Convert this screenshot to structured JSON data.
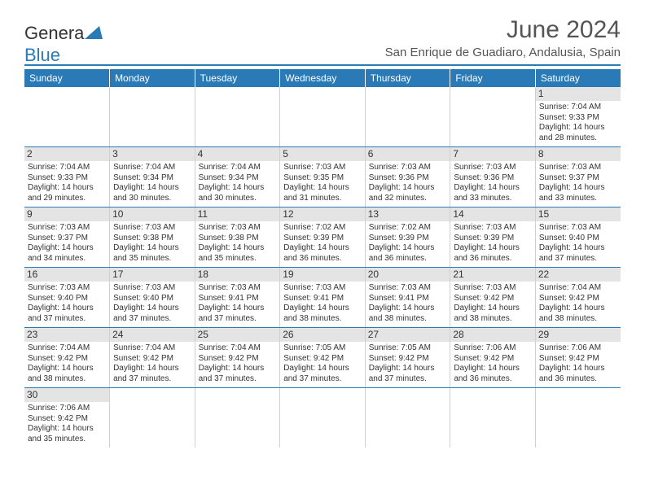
{
  "logo": {
    "part1": "Genera",
    "part2": "Blue"
  },
  "title": "June 2024",
  "location": "San Enrique de Guadiaro, Andalusia, Spain",
  "colors": {
    "header_bg": "#2a7ab8",
    "daynum_bg": "#e4e4e4",
    "border": "#2a7ab8",
    "cell_border": "#d0d0d0",
    "text": "#333333",
    "logo_tri": "#2a7ab8"
  },
  "weekdays": [
    "Sunday",
    "Monday",
    "Tuesday",
    "Wednesday",
    "Thursday",
    "Friday",
    "Saturday"
  ],
  "weeks": [
    [
      null,
      null,
      null,
      null,
      null,
      null,
      {
        "n": "1",
        "sr": "Sunrise: 7:04 AM",
        "ss": "Sunset: 9:33 PM",
        "d1": "Daylight: 14 hours",
        "d2": "and 28 minutes."
      }
    ],
    [
      {
        "n": "2",
        "sr": "Sunrise: 7:04 AM",
        "ss": "Sunset: 9:33 PM",
        "d1": "Daylight: 14 hours",
        "d2": "and 29 minutes."
      },
      {
        "n": "3",
        "sr": "Sunrise: 7:04 AM",
        "ss": "Sunset: 9:34 PM",
        "d1": "Daylight: 14 hours",
        "d2": "and 30 minutes."
      },
      {
        "n": "4",
        "sr": "Sunrise: 7:04 AM",
        "ss": "Sunset: 9:34 PM",
        "d1": "Daylight: 14 hours",
        "d2": "and 30 minutes."
      },
      {
        "n": "5",
        "sr": "Sunrise: 7:03 AM",
        "ss": "Sunset: 9:35 PM",
        "d1": "Daylight: 14 hours",
        "d2": "and 31 minutes."
      },
      {
        "n": "6",
        "sr": "Sunrise: 7:03 AM",
        "ss": "Sunset: 9:36 PM",
        "d1": "Daylight: 14 hours",
        "d2": "and 32 minutes."
      },
      {
        "n": "7",
        "sr": "Sunrise: 7:03 AM",
        "ss": "Sunset: 9:36 PM",
        "d1": "Daylight: 14 hours",
        "d2": "and 33 minutes."
      },
      {
        "n": "8",
        "sr": "Sunrise: 7:03 AM",
        "ss": "Sunset: 9:37 PM",
        "d1": "Daylight: 14 hours",
        "d2": "and 33 minutes."
      }
    ],
    [
      {
        "n": "9",
        "sr": "Sunrise: 7:03 AM",
        "ss": "Sunset: 9:37 PM",
        "d1": "Daylight: 14 hours",
        "d2": "and 34 minutes."
      },
      {
        "n": "10",
        "sr": "Sunrise: 7:03 AM",
        "ss": "Sunset: 9:38 PM",
        "d1": "Daylight: 14 hours",
        "d2": "and 35 minutes."
      },
      {
        "n": "11",
        "sr": "Sunrise: 7:03 AM",
        "ss": "Sunset: 9:38 PM",
        "d1": "Daylight: 14 hours",
        "d2": "and 35 minutes."
      },
      {
        "n": "12",
        "sr": "Sunrise: 7:02 AM",
        "ss": "Sunset: 9:39 PM",
        "d1": "Daylight: 14 hours",
        "d2": "and 36 minutes."
      },
      {
        "n": "13",
        "sr": "Sunrise: 7:02 AM",
        "ss": "Sunset: 9:39 PM",
        "d1": "Daylight: 14 hours",
        "d2": "and 36 minutes."
      },
      {
        "n": "14",
        "sr": "Sunrise: 7:03 AM",
        "ss": "Sunset: 9:39 PM",
        "d1": "Daylight: 14 hours",
        "d2": "and 36 minutes."
      },
      {
        "n": "15",
        "sr": "Sunrise: 7:03 AM",
        "ss": "Sunset: 9:40 PM",
        "d1": "Daylight: 14 hours",
        "d2": "and 37 minutes."
      }
    ],
    [
      {
        "n": "16",
        "sr": "Sunrise: 7:03 AM",
        "ss": "Sunset: 9:40 PM",
        "d1": "Daylight: 14 hours",
        "d2": "and 37 minutes."
      },
      {
        "n": "17",
        "sr": "Sunrise: 7:03 AM",
        "ss": "Sunset: 9:40 PM",
        "d1": "Daylight: 14 hours",
        "d2": "and 37 minutes."
      },
      {
        "n": "18",
        "sr": "Sunrise: 7:03 AM",
        "ss": "Sunset: 9:41 PM",
        "d1": "Daylight: 14 hours",
        "d2": "and 37 minutes."
      },
      {
        "n": "19",
        "sr": "Sunrise: 7:03 AM",
        "ss": "Sunset: 9:41 PM",
        "d1": "Daylight: 14 hours",
        "d2": "and 38 minutes."
      },
      {
        "n": "20",
        "sr": "Sunrise: 7:03 AM",
        "ss": "Sunset: 9:41 PM",
        "d1": "Daylight: 14 hours",
        "d2": "and 38 minutes."
      },
      {
        "n": "21",
        "sr": "Sunrise: 7:03 AM",
        "ss": "Sunset: 9:42 PM",
        "d1": "Daylight: 14 hours",
        "d2": "and 38 minutes."
      },
      {
        "n": "22",
        "sr": "Sunrise: 7:04 AM",
        "ss": "Sunset: 9:42 PM",
        "d1": "Daylight: 14 hours",
        "d2": "and 38 minutes."
      }
    ],
    [
      {
        "n": "23",
        "sr": "Sunrise: 7:04 AM",
        "ss": "Sunset: 9:42 PM",
        "d1": "Daylight: 14 hours",
        "d2": "and 38 minutes."
      },
      {
        "n": "24",
        "sr": "Sunrise: 7:04 AM",
        "ss": "Sunset: 9:42 PM",
        "d1": "Daylight: 14 hours",
        "d2": "and 37 minutes."
      },
      {
        "n": "25",
        "sr": "Sunrise: 7:04 AM",
        "ss": "Sunset: 9:42 PM",
        "d1": "Daylight: 14 hours",
        "d2": "and 37 minutes."
      },
      {
        "n": "26",
        "sr": "Sunrise: 7:05 AM",
        "ss": "Sunset: 9:42 PM",
        "d1": "Daylight: 14 hours",
        "d2": "and 37 minutes."
      },
      {
        "n": "27",
        "sr": "Sunrise: 7:05 AM",
        "ss": "Sunset: 9:42 PM",
        "d1": "Daylight: 14 hours",
        "d2": "and 37 minutes."
      },
      {
        "n": "28",
        "sr": "Sunrise: 7:06 AM",
        "ss": "Sunset: 9:42 PM",
        "d1": "Daylight: 14 hours",
        "d2": "and 36 minutes."
      },
      {
        "n": "29",
        "sr": "Sunrise: 7:06 AM",
        "ss": "Sunset: 9:42 PM",
        "d1": "Daylight: 14 hours",
        "d2": "and 36 minutes."
      }
    ],
    [
      {
        "n": "30",
        "sr": "Sunrise: 7:06 AM",
        "ss": "Sunset: 9:42 PM",
        "d1": "Daylight: 14 hours",
        "d2": "and 35 minutes."
      },
      null,
      null,
      null,
      null,
      null,
      null
    ]
  ]
}
